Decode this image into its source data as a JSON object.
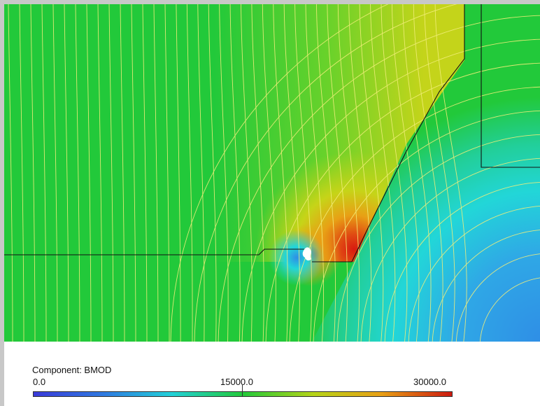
{
  "legend": {
    "component_label": "Component: BMOD",
    "min_label": "0.0",
    "mid_label": "15000.0",
    "max_label": "30000.0",
    "min_value": 0,
    "mid_value": 15000,
    "max_value": 30000,
    "colormap": [
      "#3a3ad8",
      "#2f7be0",
      "#22d0d8",
      "#22c93a",
      "#b6d418",
      "#e8a015",
      "#cc1a10"
    ]
  },
  "colors": {
    "background_field": "#22c93a",
    "field_lines": "#f2ee7a",
    "outline": "#111111",
    "void": "#ffffff"
  }
}
